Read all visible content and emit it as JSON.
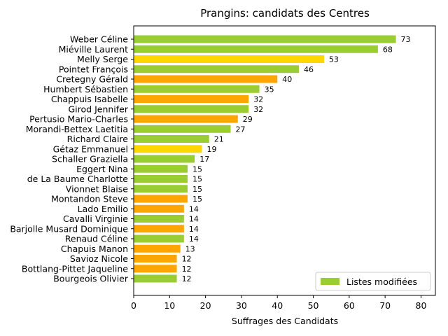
{
  "chart_data": {
    "type": "bar",
    "orientation": "horizontal",
    "title": "Prangins: candidats des Centres",
    "xlabel": "Suffrages des Candidats",
    "ylabel": "",
    "xlim": [
      0,
      84
    ],
    "xticks": [
      0,
      10,
      20,
      30,
      40,
      50,
      60,
      70,
      80
    ],
    "grid": false,
    "legend_position": "bottom-right",
    "legend": [
      {
        "label": "Listes modifiées",
        "color": "#9acd32"
      }
    ],
    "categories": [
      "Weber Céline",
      "Miéville Laurent",
      "Melly Serge",
      "Pointet François",
      "Cretegny Gérald",
      "Humbert Sébastien",
      "Chappuis Isabelle",
      "Girod Jennifer",
      "Pertusio Mario-Charles",
      "Morandi-Bettex Laetitia",
      "Richard Claire",
      "Gétaz Emmanuel",
      "Schaller Graziella",
      "Eggert Nina",
      "de La Baume Charlotte",
      "Vionnet Blaise",
      "Montandon Steve",
      "Lado Emilio",
      "Cavalli Virginie",
      "Barjolle Musard Dominique",
      "Renaud Céline",
      "Chapuis Manon",
      "Savioz Nicole",
      "Bottlang-Pittet Jaqueline",
      "Bourgeois Olivier"
    ],
    "values": [
      73,
      68,
      53,
      46,
      40,
      35,
      32,
      32,
      29,
      27,
      21,
      19,
      17,
      15,
      15,
      15,
      15,
      14,
      14,
      14,
      14,
      13,
      12,
      12,
      12
    ],
    "colors": [
      "#9acd32",
      "#9acd32",
      "#ffd700",
      "#9acd32",
      "#ffa500",
      "#9acd32",
      "#ffa500",
      "#9acd32",
      "#ffa500",
      "#9acd32",
      "#9acd32",
      "#ffd700",
      "#9acd32",
      "#9acd32",
      "#9acd32",
      "#9acd32",
      "#ffa500",
      "#ffa500",
      "#9acd32",
      "#ffa500",
      "#9acd32",
      "#ffa500",
      "#ffa500",
      "#ffa500",
      "#9acd32"
    ]
  }
}
